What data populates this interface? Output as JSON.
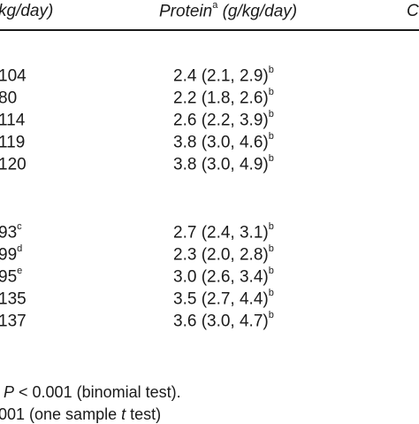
{
  "header": {
    "col_left": "kg/day)",
    "col_protein": "Protein",
    "col_protein_sup": "a",
    "col_protein_unit": " (g/kg/day)",
    "col_right": "C"
  },
  "group1": [
    {
      "left": "104",
      "left_sup": "",
      "protein": "2.4 (2.1, 2.9)",
      "protein_sup": "b"
    },
    {
      "left": "80",
      "left_sup": "",
      "protein": "2.2 (1.8, 2.6)",
      "protein_sup": "b"
    },
    {
      "left": "114",
      "left_sup": "",
      "protein": "2.6 (2.2, 3.9)",
      "protein_sup": "b"
    },
    {
      "left": "119",
      "left_sup": "",
      "protein": "3.8 (3.0, 4.6)",
      "protein_sup": "b"
    },
    {
      "left": "120",
      "left_sup": "",
      "protein": "3.8 (3.0, 4.9)",
      "protein_sup": "b"
    }
  ],
  "group2": [
    {
      "left": "93",
      "left_sup": "c",
      "protein": "2.7 (2.4, 3.1)",
      "protein_sup": "b"
    },
    {
      "left": "99",
      "left_sup": "d",
      "protein": "2.3 (2.0, 2.8)",
      "protein_sup": "b"
    },
    {
      "left": "95",
      "left_sup": "e",
      "protein": "3.0 (2.6, 3.4)",
      "protein_sup": "b"
    },
    {
      "left": "135",
      "left_sup": "",
      "protein": "3.5 (2.7, 4.4)",
      "protein_sup": "b"
    },
    {
      "left": "137",
      "left_sup": "",
      "protein": "3.6 (3.0, 4.7)",
      "protein_sup": "b"
    }
  ],
  "footnotes": {
    "fn1_p": "P",
    "fn1_rest": " < 0.001 (binomial test).",
    "fn2_text": "001 (one sample ",
    "fn2_t": "t",
    "fn2_end": " test)"
  }
}
